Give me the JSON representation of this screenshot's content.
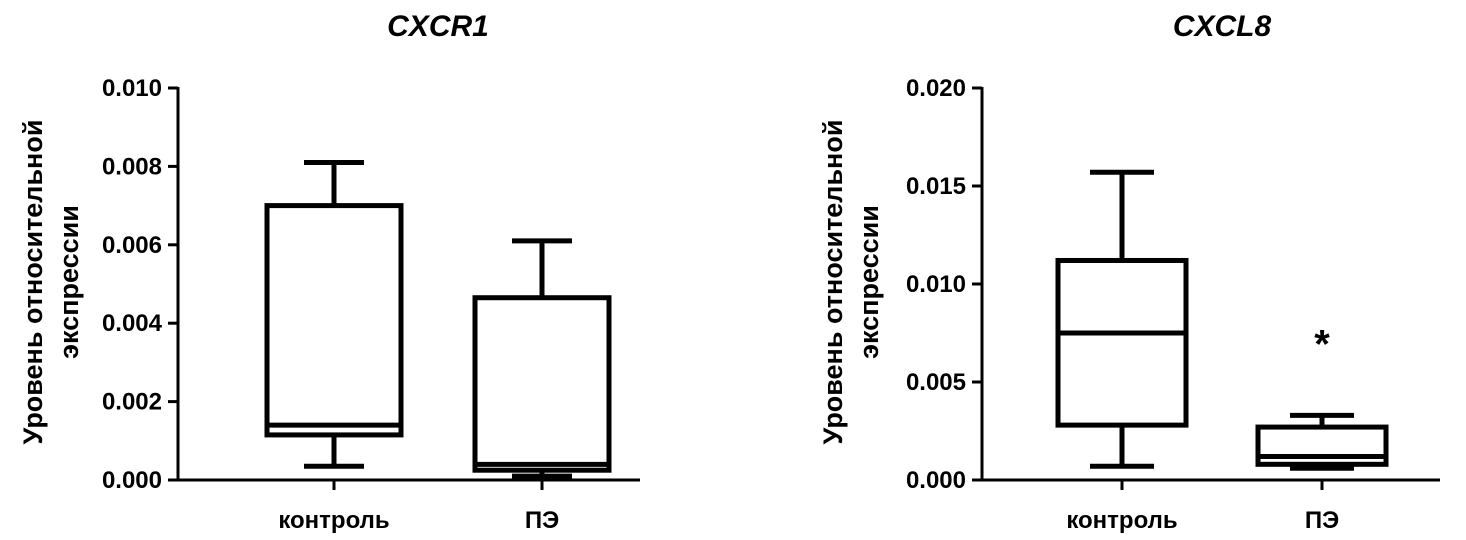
{
  "chart_data": [
    {
      "type": "box",
      "title": "CXCR1",
      "ylabel_lines": [
        "Уровень относительной",
        "экспрессии"
      ],
      "ylim": [
        0,
        0.01
      ],
      "ticks": [
        "0.000",
        "0.002",
        "0.004",
        "0.006",
        "0.008",
        "0.010"
      ],
      "tick_values": [
        0,
        0.002,
        0.004,
        0.006,
        0.008,
        0.01
      ],
      "categories": [
        "контроль",
        "ПЭ"
      ],
      "boxes": [
        {
          "category": "контроль",
          "min": 0.00035,
          "q1": 0.00115,
          "median": 0.0014,
          "q3": 0.007,
          "max": 0.0081,
          "annotation": ""
        },
        {
          "category": "ПЭ",
          "min": 0.0001,
          "q1": 0.00025,
          "median": 0.0004,
          "q3": 0.00465,
          "max": 0.0061,
          "annotation": ""
        }
      ]
    },
    {
      "type": "box",
      "title": "CXCL8",
      "ylabel_lines": [
        "Уровень относительной",
        "экспрессии"
      ],
      "ylim": [
        0,
        0.02
      ],
      "ticks": [
        "0.000",
        "0.005",
        "0.010",
        "0.015",
        "0.020"
      ],
      "tick_values": [
        0,
        0.005,
        0.01,
        0.015,
        0.02
      ],
      "categories": [
        "контроль",
        "ПЭ"
      ],
      "boxes": [
        {
          "category": "контроль",
          "min": 0.0007,
          "q1": 0.0028,
          "median": 0.0075,
          "q3": 0.0112,
          "max": 0.0157,
          "annotation": ""
        },
        {
          "category": "ПЭ",
          "min": 0.0006,
          "q1": 0.0008,
          "median": 0.0012,
          "q3": 0.0027,
          "max": 0.0033,
          "annotation": "*"
        }
      ]
    }
  ]
}
